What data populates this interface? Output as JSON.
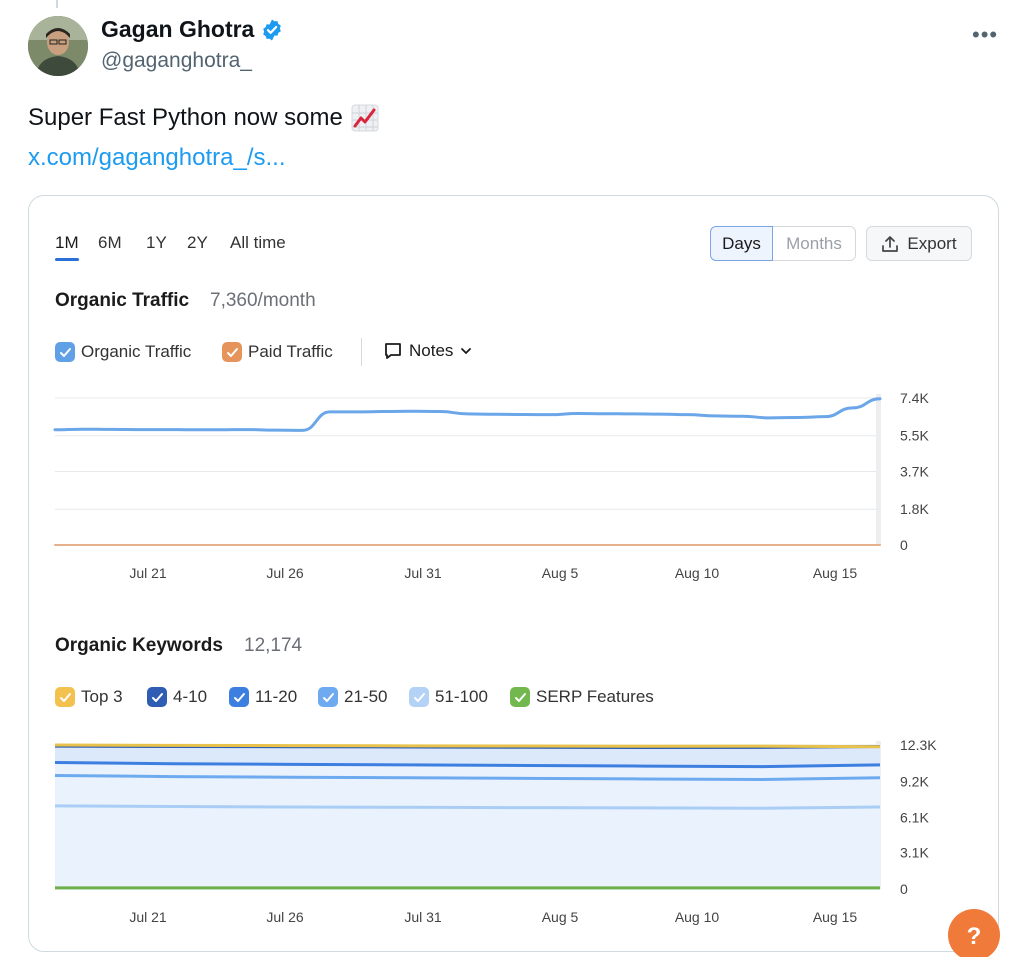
{
  "tweet": {
    "display_name": "Gagan Ghotra",
    "handle": "@gaganghotra_",
    "more_label": "•••",
    "text": "Super Fast Python now some",
    "text_emoji": "chart-increasing-emoji",
    "link": "x.com/gaganghotra_/s..."
  },
  "card": {
    "range_tabs": [
      "1M",
      "6M",
      "1Y",
      "2Y",
      "All time"
    ],
    "active_range": "1M",
    "granularity": {
      "days": "Days",
      "months": "Months",
      "selected": "Days"
    },
    "export_label": "Export",
    "organic_traffic": {
      "title": "Organic Traffic",
      "value": "7,360/month",
      "legend": [
        {
          "label": "Organic Traffic",
          "color": "#5fa0e6",
          "checked": true
        },
        {
          "label": "Paid Traffic",
          "color": "#e5945c",
          "checked": true
        }
      ],
      "notes_label": "Notes"
    },
    "organic_keywords": {
      "title": "Organic Keywords",
      "value": "12,174",
      "legend": [
        {
          "label": "Top 3",
          "color": "#f2c14e",
          "checked": true
        },
        {
          "label": "4-10",
          "color": "#2f5db3",
          "checked": true
        },
        {
          "label": "11-20",
          "color": "#3d7fe0",
          "checked": true
        },
        {
          "label": "21-50",
          "color": "#6eaaf0",
          "checked": true
        },
        {
          "label": "51-100",
          "color": "#b3d2f6",
          "checked": true
        },
        {
          "label": "SERP Features",
          "color": "#72b84e",
          "checked": true
        }
      ]
    }
  },
  "chart_data": [
    {
      "type": "line",
      "title": "Organic Traffic",
      "x_ticks": [
        "Jul 21",
        "Jul 26",
        "Jul 31",
        "Aug 5",
        "Aug 10",
        "Aug 15"
      ],
      "y_ticks": [
        "7.4K",
        "5.5K",
        "3.7K",
        "1.8K",
        "0"
      ],
      "ylim": [
        0,
        7400
      ],
      "y_tick_values": [
        7400,
        5500,
        3700,
        1800,
        0
      ],
      "x": [
        "Jul 18",
        "Jul 19",
        "Jul 20",
        "Jul 21",
        "Jul 22",
        "Jul 23",
        "Jul 24",
        "Jul 25",
        "Jul 26",
        "Jul 27",
        "Jul 28",
        "Jul 29",
        "Jul 30",
        "Jul 31",
        "Aug 1",
        "Aug 2",
        "Aug 3",
        "Aug 4",
        "Aug 5",
        "Aug 6",
        "Aug 7",
        "Aug 8",
        "Aug 9",
        "Aug 10",
        "Aug 11",
        "Aug 12",
        "Aug 13",
        "Aug 14",
        "Aug 15",
        "Aug 16",
        "Aug 17"
      ],
      "series": [
        {
          "name": "Organic Traffic",
          "color": "#6aa6e8",
          "values": [
            5800,
            5830,
            5820,
            5810,
            5810,
            5800,
            5800,
            5810,
            5780,
            5770,
            6700,
            6700,
            6720,
            6730,
            6720,
            6600,
            6580,
            6570,
            6560,
            6620,
            6610,
            6600,
            6590,
            6560,
            6500,
            6480,
            6400,
            6420,
            6460,
            6900,
            7360
          ]
        },
        {
          "name": "Paid Traffic",
          "color": "#e5b08a",
          "values": [
            0,
            0,
            0,
            0,
            0,
            0,
            0,
            0,
            0,
            0,
            0,
            0,
            0,
            0,
            0,
            0,
            0,
            0,
            0,
            0,
            0,
            0,
            0,
            0,
            0,
            0,
            0,
            0,
            0,
            0,
            0
          ]
        }
      ],
      "grid": true
    },
    {
      "type": "area",
      "title": "Organic Keywords",
      "x_ticks": [
        "Jul 21",
        "Jul 26",
        "Jul 31",
        "Aug 5",
        "Aug 10",
        "Aug 15"
      ],
      "y_ticks": [
        "12.3K",
        "9.2K",
        "6.1K",
        "3.1K",
        "0"
      ],
      "ylim": [
        0,
        12300
      ],
      "y_tick_values": [
        12300,
        9200,
        6100,
        3100,
        0
      ],
      "series": [
        {
          "name": "Top 3",
          "color": "#e8c24a",
          "values": [
            12300,
            12270,
            12250,
            12230,
            12210,
            12190,
            12200,
            12150
          ]
        },
        {
          "name": "4-10",
          "color": "#2f5db3",
          "values": [
            12200,
            12170,
            12150,
            12130,
            12110,
            12090,
            12100,
            12174
          ]
        },
        {
          "name": "11-20",
          "color": "#3d7fe0",
          "values": [
            10800,
            10700,
            10650,
            10600,
            10550,
            10500,
            10450,
            10600
          ]
        },
        {
          "name": "21-50",
          "color": "#6eaaf0",
          "values": [
            9700,
            9600,
            9550,
            9500,
            9450,
            9400,
            9350,
            9500
          ]
        },
        {
          "name": "51-100",
          "color": "#a9cdf4",
          "values": [
            7100,
            7050,
            7000,
            6980,
            6950,
            6930,
            6900,
            7000
          ]
        },
        {
          "name": "SERP Features",
          "color": "#6db04a",
          "values": [
            100,
            100,
            100,
            100,
            100,
            100,
            100,
            100
          ]
        }
      ],
      "grid": true
    }
  ]
}
